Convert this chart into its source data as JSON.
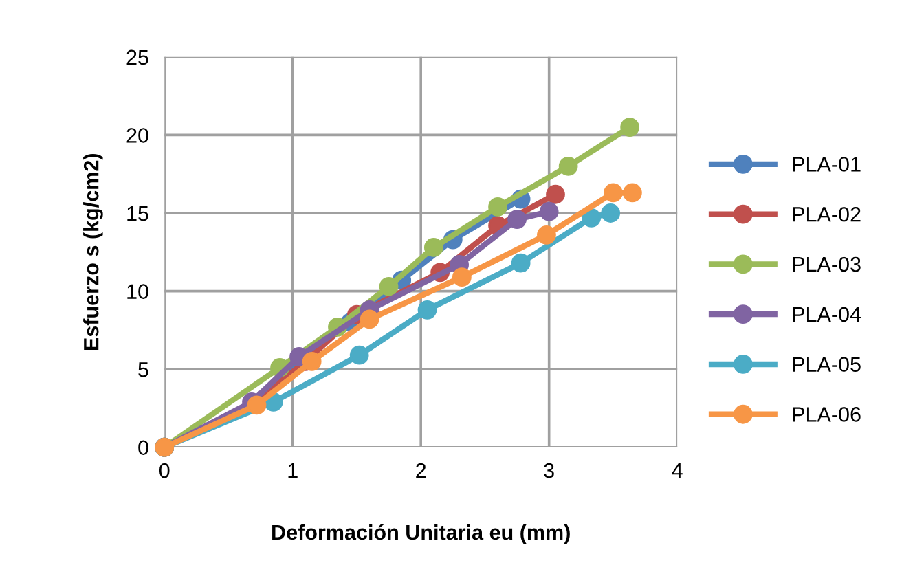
{
  "chart_data": {
    "type": "line",
    "xlabel": "Deformación Unitaria eu (mm)",
    "ylabel": "Esfuerzo s (kg/cm2)",
    "xlim": [
      0,
      4
    ],
    "xticks": [
      0,
      1,
      2,
      3,
      4
    ],
    "ylim": [
      0,
      25
    ],
    "yticks": [
      0,
      5,
      10,
      15,
      20,
      25
    ],
    "grid": true,
    "legend": "right",
    "marker": "circle",
    "line_style": "solid",
    "series": [
      {
        "name": "PLA-01",
        "color": "#4f81bd",
        "x": [
          0,
          0.7,
          1.05,
          1.45,
          1.85,
          2.25,
          2.78
        ],
        "values": [
          0,
          2.8,
          5.5,
          8.0,
          10.7,
          13.3,
          15.9
        ]
      },
      {
        "name": "PLA-02",
        "color": "#c0504d",
        "x": [
          0,
          0.7,
          1.1,
          1.5,
          2.15,
          2.6,
          3.05
        ],
        "values": [
          0,
          2.8,
          5.5,
          8.5,
          11.2,
          14.2,
          16.2
        ]
      },
      {
        "name": "PLA-03",
        "color": "#9bbb59",
        "x": [
          0,
          0.9,
          1.35,
          1.75,
          2.1,
          2.6,
          3.15,
          3.63
        ],
        "values": [
          0,
          5.1,
          7.7,
          10.3,
          12.8,
          15.4,
          18.0,
          20.5
        ]
      },
      {
        "name": "PLA-04",
        "color": "#8064a2",
        "x": [
          0,
          0.68,
          1.05,
          1.6,
          2.3,
          2.75,
          3.0
        ],
        "values": [
          0,
          2.9,
          5.8,
          8.8,
          11.7,
          14.6,
          15.1
        ]
      },
      {
        "name": "PLA-05",
        "color": "#4bacc6",
        "x": [
          0,
          0.85,
          1.52,
          2.05,
          2.78,
          3.33,
          3.48
        ],
        "values": [
          0,
          2.9,
          5.9,
          8.8,
          11.8,
          14.7,
          15.0
        ]
      },
      {
        "name": "PLA-06",
        "color": "#f79646",
        "x": [
          0,
          0.72,
          1.15,
          1.6,
          2.32,
          2.98,
          3.5,
          3.65
        ],
        "values": [
          0,
          2.7,
          5.5,
          8.2,
          10.9,
          13.6,
          16.3,
          16.3
        ]
      }
    ]
  }
}
